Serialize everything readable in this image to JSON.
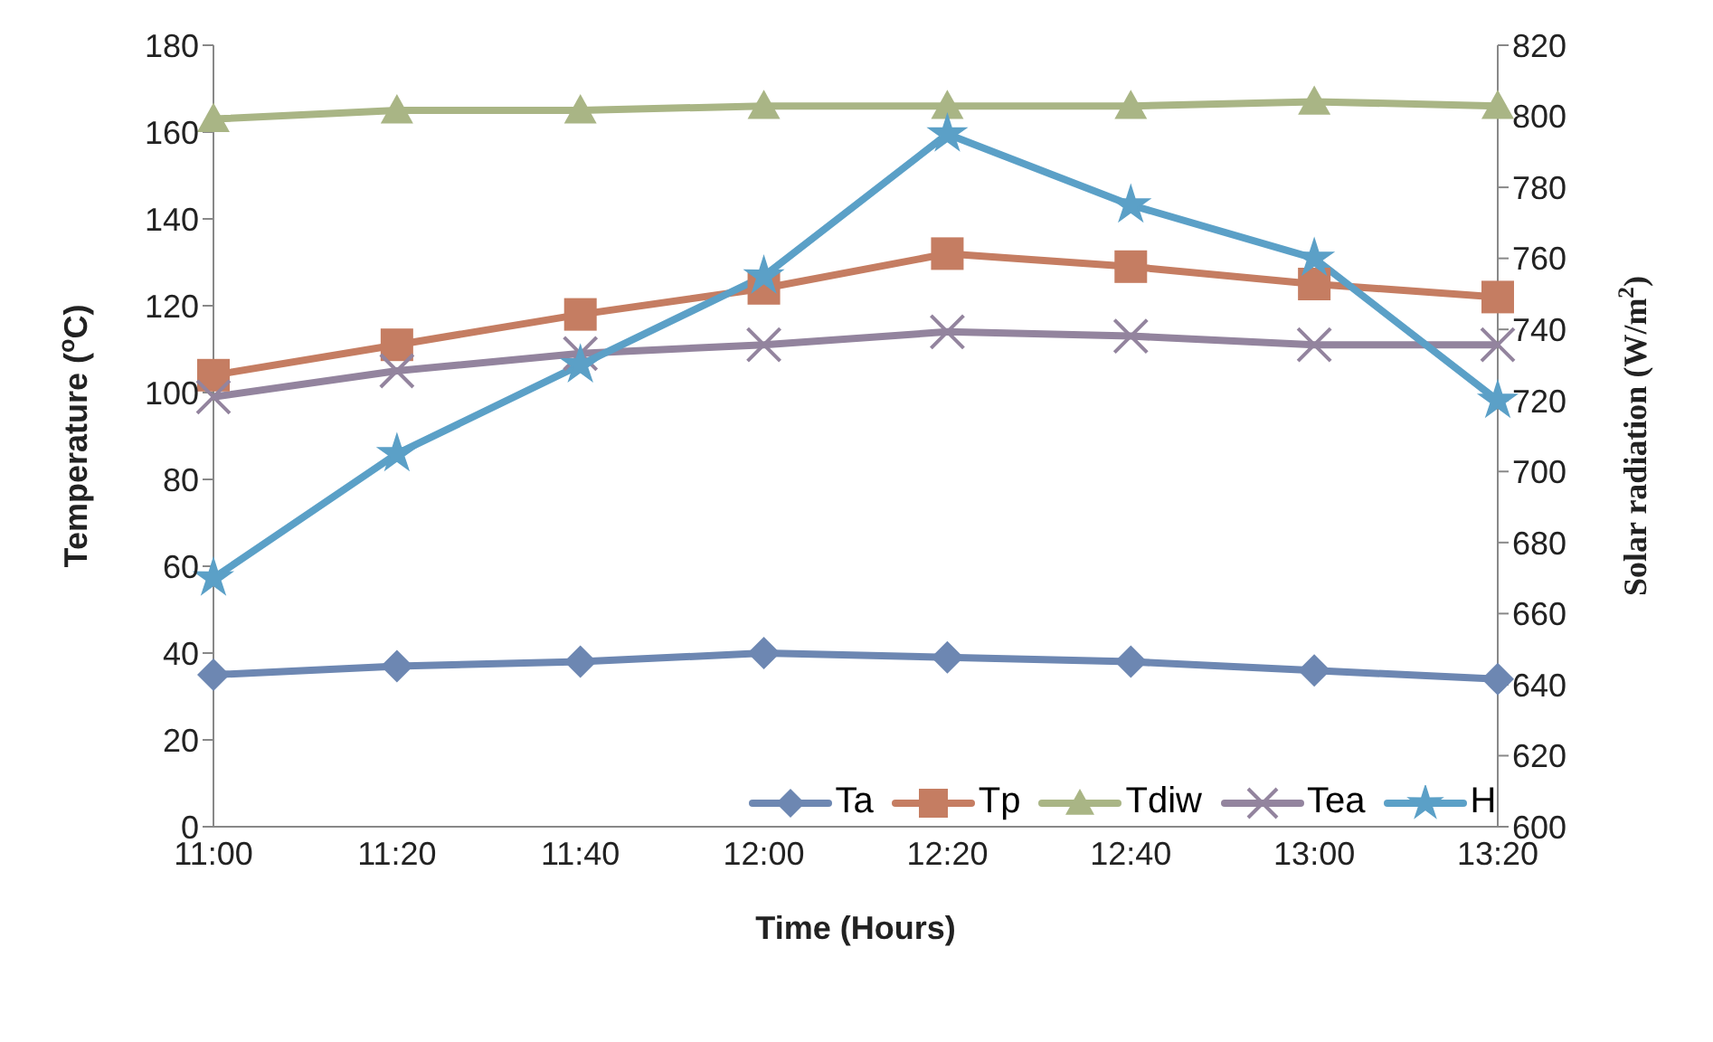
{
  "chart_data": {
    "type": "line",
    "xlabel": "Time (Hours)",
    "ylabel": "Temperature ($^{o}$C)",
    "y2label": "Solar radiation (W/m$^{2}$)",
    "categories": [
      "11:00",
      "11:20",
      "11:40",
      "12:00",
      "12:20",
      "12:40",
      "13:00",
      "13:20"
    ],
    "series": [
      {
        "name": "Ta",
        "color": "#6d87b2",
        "marker": "diamond",
        "values": [
          35,
          37,
          38,
          40,
          39,
          38,
          36,
          34
        ]
      },
      {
        "name": "Tp",
        "color": "#c57d62",
        "marker": "square",
        "values": [
          104,
          111,
          118,
          124,
          132,
          129,
          125,
          122
        ]
      },
      {
        "name": "Tdiw",
        "color": "#a9b585",
        "marker": "triangle",
        "values": [
          163,
          165,
          165,
          166,
          166,
          166,
          167,
          166
        ]
      },
      {
        "name": "Tea",
        "color": "#93849e",
        "marker": "cross",
        "values": [
          99,
          105,
          109,
          111,
          114,
          113,
          111,
          111
        ]
      },
      {
        "name": "H",
        "color": "#5ba0c7",
        "marker": "star",
        "axis": "y2",
        "values": [
          670,
          705,
          730,
          755,
          795,
          775,
          760,
          720
        ]
      }
    ],
    "ylim": [
      0,
      180
    ],
    "yticks": [
      0,
      20,
      40,
      60,
      80,
      100,
      120,
      140,
      160,
      180
    ],
    "y2lim": [
      600,
      820
    ],
    "y2ticks": [
      600,
      620,
      640,
      660,
      680,
      700,
      720,
      740,
      760,
      780,
      800,
      820
    ],
    "grid": false,
    "legend": "bottom",
    "line_style": "solid"
  }
}
